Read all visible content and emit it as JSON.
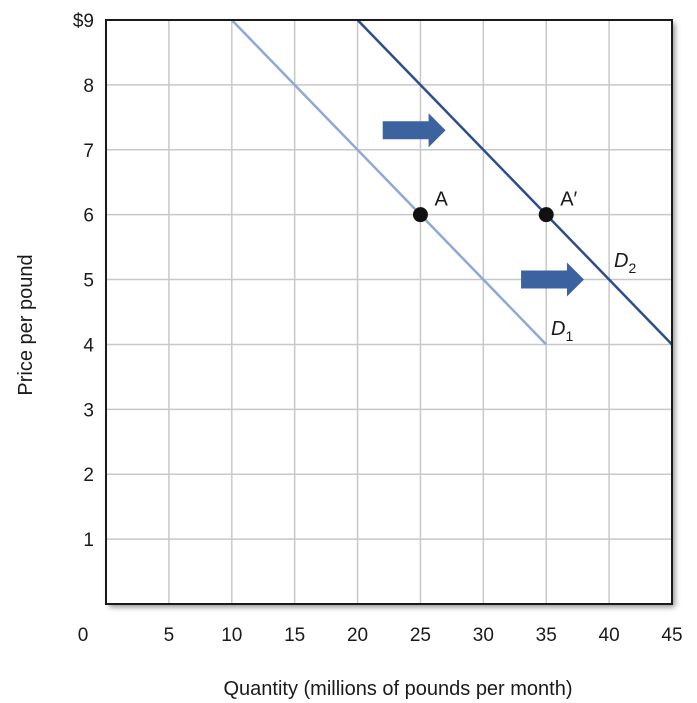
{
  "chart_data": {
    "type": "line",
    "xlabel": "Quantity (millions of pounds per month)",
    "ylabel": "Price per pound",
    "xlim": [
      0,
      45
    ],
    "ylim": [
      0,
      9
    ],
    "x_ticks": [
      "0",
      "5",
      "10",
      "15",
      "20",
      "25",
      "30",
      "35",
      "40",
      "45"
    ],
    "y_ticks": [
      "",
      "1",
      "2",
      "3",
      "4",
      "5",
      "6",
      "7",
      "8",
      "$9"
    ],
    "grid": true,
    "series": [
      {
        "name": "D",
        "subscript": "1",
        "color": "#8fa9d6",
        "points": [
          [
            10,
            9
          ],
          [
            35,
            4
          ]
        ]
      },
      {
        "name": "D",
        "subscript": "2",
        "color": "#2b4f8c",
        "points": [
          [
            20,
            9
          ],
          [
            45,
            4
          ]
        ]
      }
    ],
    "points": [
      {
        "label": "A",
        "x": 25,
        "y": 6
      },
      {
        "label": "A′",
        "x": 35,
        "y": 6
      }
    ],
    "arrows": [
      {
        "x_from": 22,
        "x_to": 27,
        "y": 7.3,
        "direction": "right"
      },
      {
        "x_from": 33,
        "x_to": 38,
        "y": 5,
        "direction": "right"
      }
    ],
    "arrow_color": "#3c63a0",
    "frame_color": "#1a1a1a",
    "grid_color": "#c8c8c8"
  }
}
